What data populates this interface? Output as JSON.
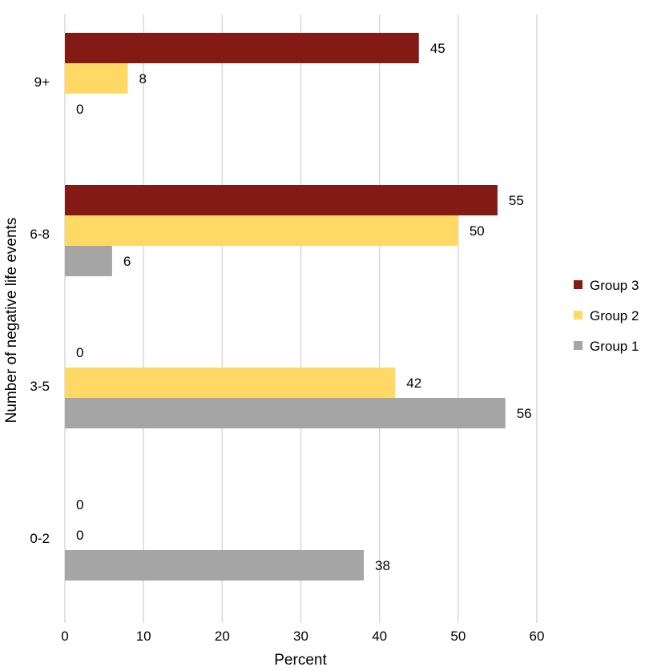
{
  "chart_data": {
    "type": "bar",
    "orientation": "horizontal",
    "title": "",
    "xlabel": "Percent",
    "ylabel": "Number of negative life events",
    "categories": [
      "9+",
      "6-8",
      "3-5",
      "0-2"
    ],
    "series": [
      {
        "name": "Group 3",
        "color": "#831A14",
        "values": [
          45,
          55,
          0,
          0
        ]
      },
      {
        "name": "Group 2",
        "color": "#FFD966",
        "values": [
          8,
          50,
          42,
          0
        ]
      },
      {
        "name": "Group 1",
        "color": "#A5A5A5",
        "values": [
          0,
          6,
          56,
          38
        ]
      }
    ],
    "xlim": [
      0,
      60
    ],
    "xticks": [
      "0",
      "10",
      "20",
      "30",
      "40",
      "50",
      "60"
    ],
    "grid": true,
    "legend": "right",
    "legend_order": [
      "Group 3",
      "Group 2",
      "Group 1"
    ]
  }
}
